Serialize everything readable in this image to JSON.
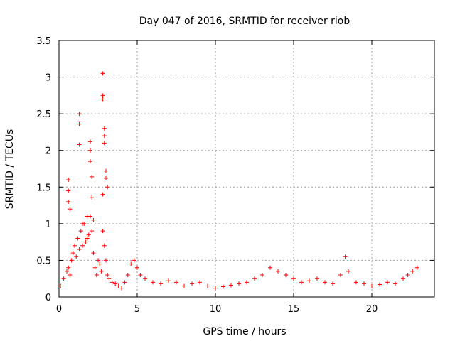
{
  "chart_data": {
    "type": "scatter",
    "title": "Day 047 of 2016, SRMTID for receiver riob",
    "xlabel": "GPS time / hours",
    "ylabel": "SRMTID / TECUs",
    "xlim": [
      0,
      24
    ],
    "ylim": [
      0,
      3.5
    ],
    "x_ticks": [
      "0",
      "5",
      "10",
      "15",
      "20"
    ],
    "y_ticks": [
      "0",
      "0.5",
      "1",
      "1.5",
      "2",
      "2.5",
      "3",
      "3.5"
    ],
    "grid": true,
    "marker": "+",
    "color": "#ff0000",
    "series": [
      {
        "name": "SRMTID",
        "x": [
          0.1,
          0.3,
          0.5,
          0.6,
          0.7,
          0.8,
          0.9,
          1.0,
          1.1,
          1.2,
          1.3,
          1.4,
          1.5,
          1.6,
          1.7,
          1.8,
          1.9,
          2.0,
          2.1,
          2.2,
          2.3,
          2.4,
          2.5,
          2.6,
          2.7,
          2.8,
          2.9,
          3.0,
          3.1,
          3.2,
          3.4,
          3.6,
          3.8,
          4.0,
          4.2,
          4.4,
          4.6,
          4.8,
          5.0,
          5.2,
          5.5,
          6.0,
          6.5,
          7.0,
          7.5,
          8.0,
          8.5,
          9.0,
          9.5,
          10.0,
          10.5,
          11.0,
          11.5,
          12.0,
          12.5,
          13.0,
          13.5,
          14.0,
          14.5,
          15.0,
          15.5,
          16.0,
          16.5,
          17.0,
          17.5,
          18.0,
          18.3,
          18.5,
          19.0,
          19.5,
          20.0,
          20.5,
          21.0,
          21.5,
          22.0,
          22.3,
          22.6,
          22.9,
          0.6,
          0.6,
          0.6,
          0.7,
          1.3,
          1.3,
          1.3,
          2.0,
          2.0,
          2.0,
          2.1,
          2.1,
          2.8,
          2.8,
          2.8,
          2.9,
          2.9,
          2.9,
          3.0,
          3.0,
          3.1,
          2.8,
          1.5,
          1.8,
          2.2
        ],
        "y": [
          0.15,
          0.25,
          0.35,
          0.4,
          0.3,
          0.5,
          0.6,
          0.7,
          0.55,
          0.8,
          0.65,
          0.9,
          0.7,
          1.0,
          0.75,
          0.8,
          0.85,
          1.1,
          0.9,
          0.6,
          0.4,
          0.3,
          0.5,
          0.45,
          0.35,
          0.9,
          0.7,
          0.5,
          0.3,
          0.25,
          0.2,
          0.18,
          0.15,
          0.12,
          0.2,
          0.3,
          0.45,
          0.5,
          0.4,
          0.3,
          0.25,
          0.2,
          0.18,
          0.22,
          0.2,
          0.15,
          0.18,
          0.2,
          0.15,
          0.12,
          0.14,
          0.16,
          0.18,
          0.2,
          0.25,
          0.3,
          0.4,
          0.35,
          0.3,
          0.25,
          0.2,
          0.22,
          0.25,
          0.2,
          0.18,
          0.3,
          0.55,
          0.35,
          0.2,
          0.18,
          0.15,
          0.17,
          0.2,
          0.18,
          0.25,
          0.3,
          0.35,
          0.4,
          1.6,
          1.45,
          1.3,
          1.2,
          2.5,
          2.36,
          2.08,
          2.12,
          2.0,
          1.85,
          1.64,
          1.36,
          3.05,
          2.75,
          2.7,
          2.3,
          2.2,
          2.1,
          1.72,
          1.62,
          1.5,
          1.4,
          1.0,
          1.1,
          1.05
        ]
      }
    ]
  }
}
